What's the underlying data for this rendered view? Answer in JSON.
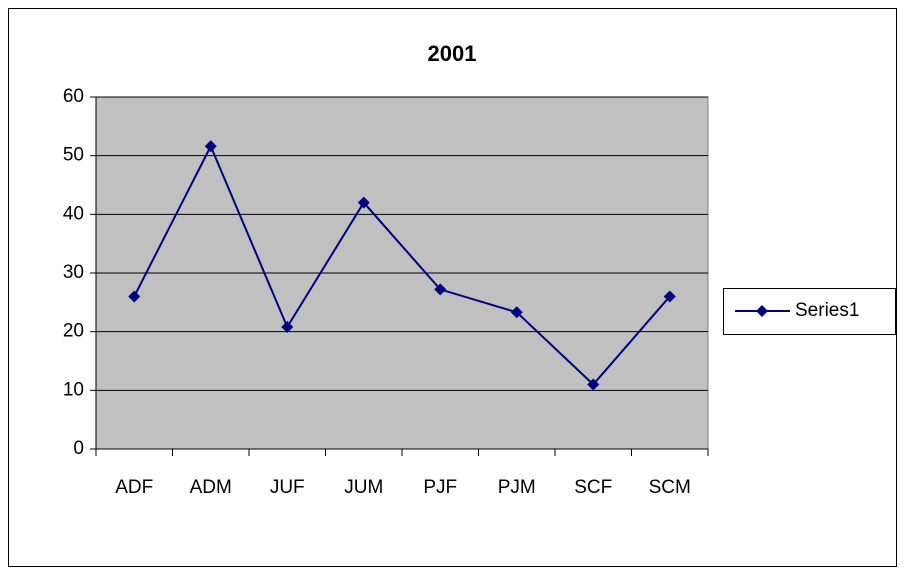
{
  "chart_data": {
    "type": "line",
    "title": "2001",
    "categories": [
      "ADF",
      "ADM",
      "JUF",
      "JUM",
      "PJF",
      "PJM",
      "SCF",
      "SCM"
    ],
    "series": [
      {
        "name": "Series1",
        "color": "#000080",
        "values": [
          26,
          51.6,
          20.8,
          42,
          27.2,
          23.3,
          11,
          26
        ]
      }
    ],
    "ylim": [
      0,
      60
    ],
    "yticks": [
      0,
      10,
      20,
      30,
      40,
      50,
      60
    ],
    "grid": true,
    "legend": "right"
  }
}
